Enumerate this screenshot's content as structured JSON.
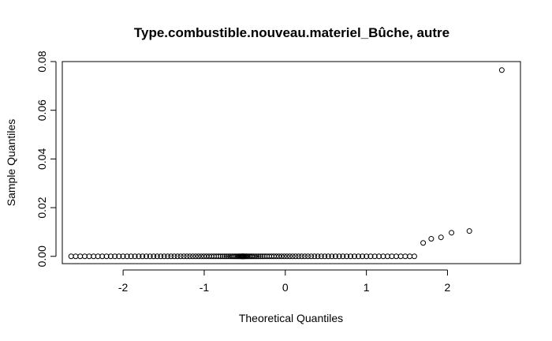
{
  "chart_data": {
    "type": "scatter",
    "title": "Type.combustible.nouveau.materiel_Bûche, autre",
    "xlabel": "Theoretical Quantiles",
    "ylabel": "Sample Quantiles",
    "xlim": [
      -2.75,
      2.9
    ],
    "ylim": [
      -0.003,
      0.08
    ],
    "x_ticks": [
      -2,
      -1,
      0,
      1,
      2
    ],
    "x_tick_labels": [
      "-2",
      "-1",
      "0",
      "1",
      "2"
    ],
    "y_ticks": [
      0.0,
      0.02,
      0.04,
      0.06,
      0.08
    ],
    "y_tick_labels": [
      "0.00",
      "0.02",
      "0.04",
      "0.06",
      "0.08"
    ],
    "grid": false,
    "points_zero_x_range": [
      -2.67,
      1.62
    ],
    "points_zero_count": 120,
    "points_nonzero": [
      {
        "x": 1.7,
        "y": 0.0055
      },
      {
        "x": 1.8,
        "y": 0.0072
      },
      {
        "x": 1.92,
        "y": 0.0078
      },
      {
        "x": 2.05,
        "y": 0.0097
      },
      {
        "x": 2.27,
        "y": 0.0104
      },
      {
        "x": 2.67,
        "y": 0.0765
      }
    ]
  }
}
